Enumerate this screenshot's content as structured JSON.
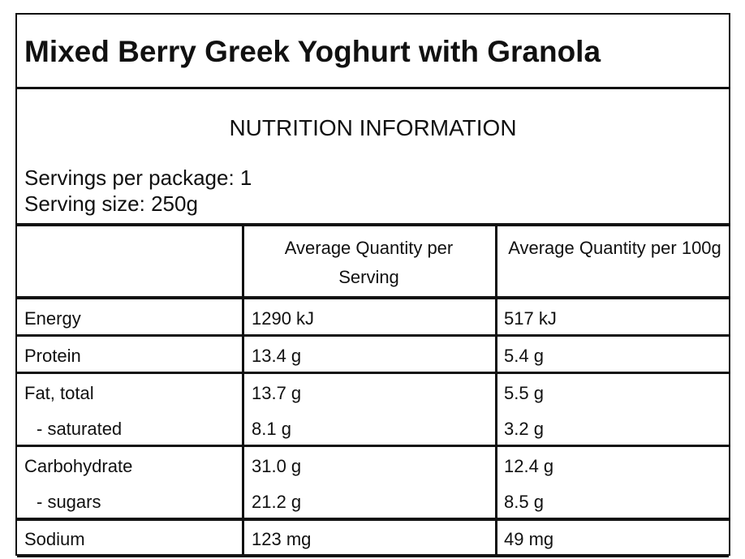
{
  "title": "Mixed Berry Greek Yoghurt with Granola",
  "heading": "NUTRITION INFORMATION",
  "servings_per_package": "Servings per package: 1",
  "serving_size": "Serving size: 250g",
  "columns": {
    "blank": "",
    "per_serving": "Average Quantity per Serving",
    "per_100g": "Average Quantity per 100g"
  },
  "rows": [
    {
      "label": "Energy",
      "per_serving": "1290 kJ",
      "per_100g": "517 kJ"
    },
    {
      "label": "Protein",
      "per_serving": "13.4 g",
      "per_100g": "5.4 g"
    },
    {
      "label": "Fat, total",
      "per_serving": "13.7 g",
      "per_100g": "5.5 g"
    },
    {
      "label": "- saturated",
      "per_serving": "8.1 g",
      "per_100g": "3.2 g"
    },
    {
      "label": "Carbohydrate",
      "per_serving": "31.0 g",
      "per_100g": "12.4 g"
    },
    {
      "label": "- sugars",
      "per_serving": "21.2 g",
      "per_100g": "8.5 g"
    },
    {
      "label": "Sodium",
      "per_serving": "123 mg",
      "per_100g": "49 mg"
    }
  ]
}
